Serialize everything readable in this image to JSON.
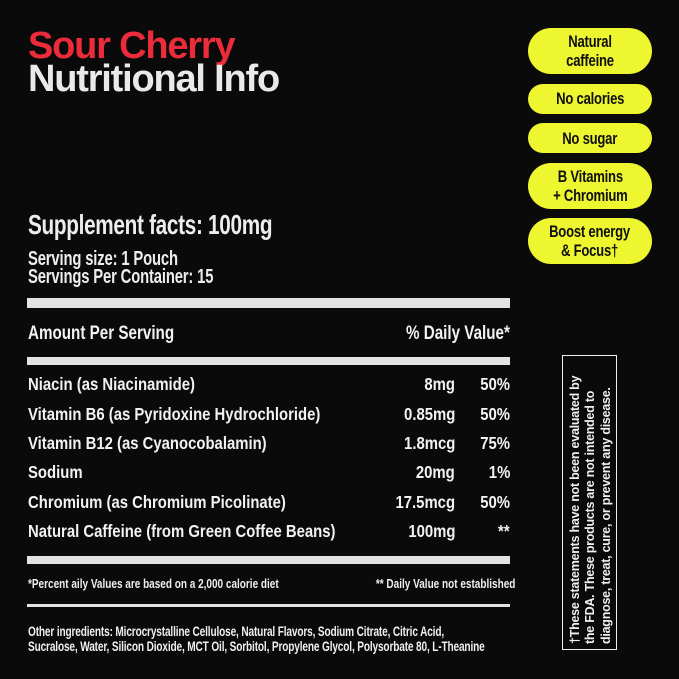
{
  "colors": {
    "background": "#0A0A0A",
    "accent_red": "#EC2B3B",
    "badge_yellow": "#EDF62F",
    "bar_gray": "#E3E3E3",
    "text_white": "#F0F0F0",
    "badge_text": "#101010"
  },
  "header": {
    "title_line1": "Sour Cherry",
    "title_line2": "Nutritional Info"
  },
  "badges": [
    {
      "label": "Natural caffeine"
    },
    {
      "label": "No calories"
    },
    {
      "label": "No sugar"
    },
    {
      "label": "B Vitamins\n+ Chromium"
    },
    {
      "label": "Boost energy\n& Focus†"
    }
  ],
  "supplement_facts": {
    "heading": "Supplement facts: 100mg",
    "serving_size": "Serving size: 1 Pouch",
    "servings_per_container": "Servings Per Container: 15"
  },
  "table": {
    "columns": {
      "amount_header": "Amount Per Serving",
      "daily_value_header": "% Daily Value*"
    },
    "rows": [
      {
        "name": "Niacin (as Niacinamide)",
        "amount": "8mg",
        "dv": "50%"
      },
      {
        "name": "Vitamin B6 (as Pyridoxine Hydrochloride)",
        "amount": "0.85mg",
        "dv": "50%"
      },
      {
        "name": "Vitamin B12 (as Cyanocobalamin)",
        "amount": "1.8mcg",
        "dv": "75%"
      },
      {
        "name": "Sodium",
        "amount": "20mg",
        "dv": "1%"
      },
      {
        "name": "Chromium (as Chromium Picolinate)",
        "amount": "17.5mcg",
        "dv": "50%"
      },
      {
        "name": "Natural Caffeine (from Green Coffee Beans)",
        "amount": "100mg",
        "dv": "**"
      }
    ],
    "footnote_left": "*Percent aily Values are based on a 2,000 calorie diet",
    "footnote_right": "** Daily Value not established"
  },
  "other_ingredients": "Other ingredients: Microcrystalline Cellulose, Natural Flavors, Sodium Citrate, Citric Acid,\nSucralose, Water, Silicon Dioxide, MCT Oil, Sorbitol, Propylene Glycol, Polysorbate 80, L-Theanine",
  "disclaimer": "†These statements have not been evaluated by\nthe FDA. These products are not intended to\ndiagnose, treat, cure, or prevent any disease."
}
